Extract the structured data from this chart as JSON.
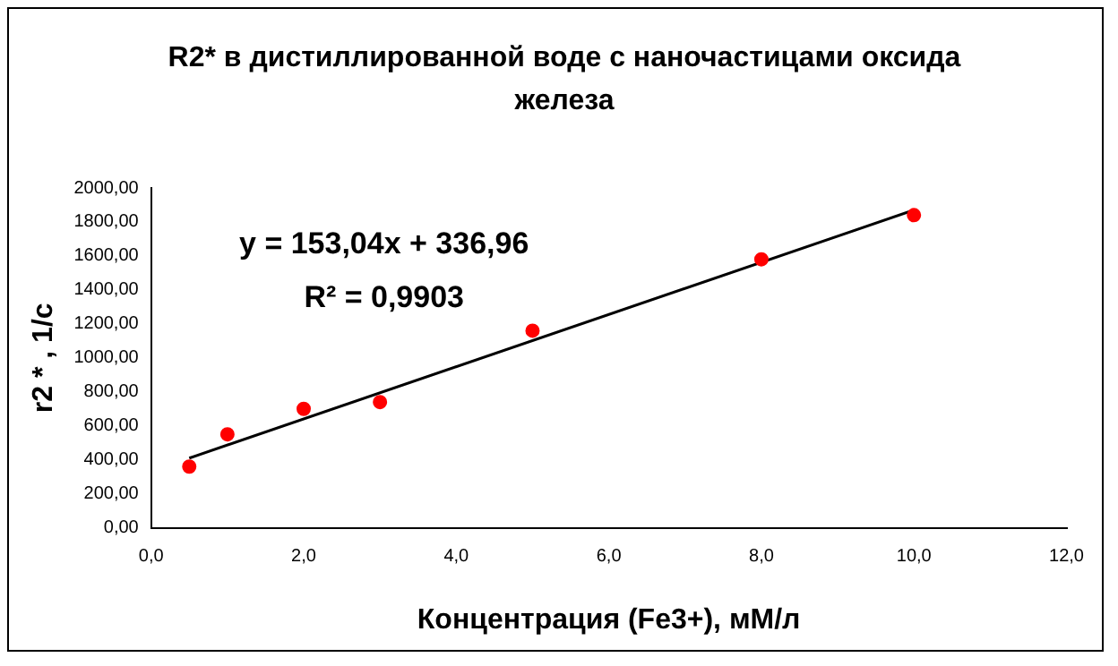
{
  "chart_data": {
    "type": "scatter",
    "title": "R2* в дистиллированной воде с наночастицами оксида железа",
    "xlabel": "Концентрация (Fe3+), мМ/л",
    "ylabel": "r2 * , 1/с",
    "series": [
      {
        "type": "scatter",
        "color": "#ff0000",
        "x": [
          0.5,
          1,
          2,
          3,
          5,
          8,
          10
        ],
        "values": [
          360,
          550,
          700,
          740,
          1160,
          1580,
          1840
        ],
        "marker": "circle"
      },
      {
        "type": "line",
        "color": "#000000",
        "x": [
          0.5,
          10
        ],
        "values": [
          410,
          1870
        ],
        "marker": "none",
        "line_style": "solid"
      }
    ],
    "annotations": [
      "y = 153,04x + 336,96",
      "R² = 0,9903"
    ],
    "xlim": [
      0,
      12
    ],
    "xticks": [
      {
        "value": 0,
        "label": "0,0"
      },
      {
        "value": 2,
        "label": "2,0"
      },
      {
        "value": 4,
        "label": "4,0"
      },
      {
        "value": 6,
        "label": "6,0"
      },
      {
        "value": 8,
        "label": "8,0"
      },
      {
        "value": 10,
        "label": "10,0"
      },
      {
        "value": 12,
        "label": "12,0"
      }
    ],
    "ylim": [
      0,
      2000
    ],
    "yticks": [
      {
        "value": 0,
        "label": "0,00"
      },
      {
        "value": 200,
        "label": "200,00"
      },
      {
        "value": 400,
        "label": "400,00"
      },
      {
        "value": 600,
        "label": "600,00"
      },
      {
        "value": 800,
        "label": "800,00"
      },
      {
        "value": 1000,
        "label": "1000,00"
      },
      {
        "value": 1200,
        "label": "1200,00"
      },
      {
        "value": 1400,
        "label": "1400,00"
      },
      {
        "value": 1600,
        "label": "1600,00"
      },
      {
        "value": 1800,
        "label": "1800,00"
      },
      {
        "value": 2000,
        "label": "2000,00"
      }
    ],
    "grid": false,
    "legend": false
  }
}
